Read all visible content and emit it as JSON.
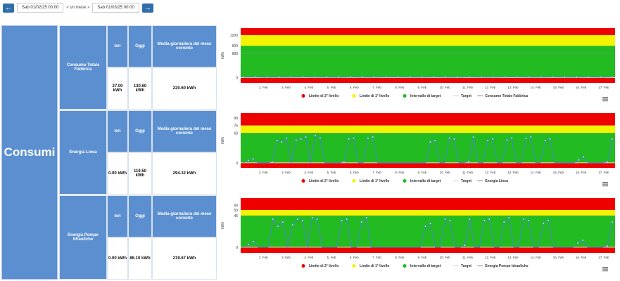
{
  "nav": {
    "prev_icon": "arrow-left-icon",
    "next_icon": "arrow-right-icon",
    "start_date": "Sab 01/02/25 00:00",
    "range_label": "« un mese »",
    "end_date": "Sab 01/03/25 00:00"
  },
  "section_title": "Consumi",
  "colors": {
    "header_blue": "#5b8fcf",
    "red": "#ee0000",
    "yellow": "#f4f400",
    "green": "#22bb22",
    "series": "#4a86c8"
  },
  "rows": [
    {
      "name": "Consumo Totale Fabbrica",
      "headers": {
        "yesterday": "Ieri",
        "today": "Oggi",
        "avg": "Media giornaliera del mese corrente"
      },
      "values": {
        "yesterday": "27.00 kWh",
        "today": "130.60 kWh",
        "avg": "220.60 kWh"
      }
    },
    {
      "name": "Energia Linea",
      "headers": {
        "yesterday": "Ieri",
        "today": "Oggi",
        "avg": "Media giornaliera del mese corrente"
      },
      "values": {
        "yesterday": "0.00 kWh",
        "today": "119.50 kWh",
        "avg": "294.32 kWh"
      }
    },
    {
      "name": "Energia Pompe Idrauliche",
      "headers": {
        "yesterday": "Ieri",
        "today": "Oggi",
        "avg": "Media giornaliera del mese corrente"
      },
      "values": {
        "yesterday": "0.00 kWh",
        "today": "86.10 kWh",
        "avg": "219.67 kWh"
      }
    }
  ],
  "chart_data": [
    {
      "type": "area",
      "ylabel": "kWh",
      "yticks": [
        0,
        680,
        900,
        1200
      ],
      "ylim": [
        -150,
        1400
      ],
      "xticks": [
        "2. Feb",
        "3. Feb",
        "4. Feb",
        "5. Feb",
        "6. Feb",
        "7. Feb",
        "8. Feb",
        "9. Feb",
        "10. Feb",
        "11. Feb",
        "12. Feb",
        "13. Feb",
        "14. Feb",
        "15. Feb",
        "16. Feb",
        "17. Feb"
      ],
      "bands": [
        {
          "name": "Limite di 2° livello",
          "from": 1200,
          "to": 1400,
          "color": "#ee0000"
        },
        {
          "name": "Limite di 1° livello",
          "from": 900,
          "to": 1200,
          "color": "#f4f400"
        },
        {
          "name": "Intervallo di target",
          "from": 0,
          "to": 900,
          "color": "#22bb22"
        },
        {
          "name": "Limite di 2° livello",
          "from": -150,
          "to": 0,
          "color": "#ee0000"
        }
      ],
      "target": 680,
      "series": [
        {
          "name": "Consumo Totale Fabbrica",
          "values": [
            10,
            12,
            9,
            11,
            10,
            12,
            11,
            10,
            9,
            12,
            11,
            10,
            13,
            12,
            11,
            10,
            12,
            11,
            10,
            12,
            11,
            10,
            13,
            12,
            11,
            10,
            12,
            11,
            10,
            12,
            11,
            12
          ]
        }
      ],
      "legend": [
        "Limite di 2° livello",
        "Limite di 1° livello",
        "Intervallo di target",
        "Target",
        "Consumo Totale Fabbrica"
      ],
      "legend_colors": [
        "#ee0000",
        "#f4f400",
        "#22bb22",
        "#cccccc",
        "#4a86c8"
      ]
    },
    {
      "type": "area",
      "ylabel": "kWh",
      "yticks": [
        0,
        60,
        75,
        90
      ],
      "ylim": [
        -10,
        100
      ],
      "xticks": [
        "2. Feb",
        "3. Feb",
        "4. Feb",
        "5. Feb",
        "6. Feb",
        "7. Feb",
        "8. Feb",
        "9. Feb",
        "10. Feb",
        "11. Feb",
        "12. Feb",
        "13. Feb",
        "14. Feb",
        "15. Feb",
        "16. Feb",
        "17. Feb"
      ],
      "bands": [
        {
          "name": "Limite di 2° livello",
          "from": 75,
          "to": 100,
          "color": "#ee0000"
        },
        {
          "name": "Limite di 1° livello",
          "from": 60,
          "to": 75,
          "color": "#f4f400"
        },
        {
          "name": "Intervallo di target",
          "from": 0,
          "to": 60,
          "color": "#22bb22"
        },
        {
          "name": "Limite di 2° livello",
          "from": -10,
          "to": 0,
          "color": "#ee0000"
        }
      ],
      "target": 60,
      "series": [
        {
          "name": "Energia Linea",
          "values": [
            0,
            5,
            8,
            0,
            0,
            0,
            2,
            45,
            42,
            50,
            0,
            46,
            48,
            52,
            0,
            55,
            50,
            0,
            0,
            0,
            0,
            2,
            48,
            50,
            0,
            0,
            49,
            52,
            0,
            0,
            0,
            0,
            0,
            0,
            0,
            0,
            0,
            0,
            0,
            42,
            45,
            0,
            0,
            50,
            48,
            0,
            0,
            3,
            52,
            0,
            0,
            45,
            48,
            0,
            0,
            46,
            50,
            0,
            0,
            49,
            52,
            0,
            0,
            45,
            48,
            0,
            0,
            0,
            0,
            0,
            6,
            12,
            0,
            0,
            0,
            0,
            2,
            48
          ]
        }
      ],
      "legend": [
        "Limite di 2° livello",
        "Limite di 1° livello",
        "Intervallo di target",
        "Target",
        "Energia Linea"
      ],
      "legend_colors": [
        "#ee0000",
        "#f4f400",
        "#22bb22",
        "#cccccc",
        "#4a86c8"
      ]
    },
    {
      "type": "area",
      "ylabel": "kWh",
      "yticks": [
        0,
        45,
        53,
        60
      ],
      "ylim": [
        -8,
        70
      ],
      "xticks": [
        "2. Feb",
        "3. Feb",
        "4. Feb",
        "5. Feb",
        "6. Feb",
        "7. Feb",
        "8. Feb",
        "9. Feb",
        "10. Feb",
        "11. Feb",
        "12. Feb",
        "13. Feb",
        "14. Feb",
        "15. Feb",
        "16. Feb",
        "17. Feb"
      ],
      "bands": [
        {
          "name": "Limite di 2° livello",
          "from": 53,
          "to": 70,
          "color": "#ee0000"
        },
        {
          "name": "Limite di 1° livello",
          "from": 45,
          "to": 53,
          "color": "#f4f400"
        },
        {
          "name": "Intervallo di target",
          "from": 0,
          "to": 45,
          "color": "#22bb22"
        },
        {
          "name": "Limite di 2° livello",
          "from": -8,
          "to": 0,
          "color": "#ee0000"
        }
      ],
      "target": 45,
      "series": [
        {
          "name": "Energia Pompe Idrauliche",
          "values": [
            0,
            4,
            8,
            0,
            0,
            0,
            40,
            30,
            36,
            0,
            32,
            40,
            38,
            0,
            42,
            40,
            0,
            0,
            0,
            0,
            38,
            40,
            0,
            0,
            36,
            42,
            0,
            0,
            0,
            0,
            0,
            0,
            0,
            0,
            0,
            0,
            0,
            30,
            34,
            0,
            0,
            40,
            38,
            0,
            0,
            3,
            40,
            0,
            0,
            38,
            40,
            0,
            0,
            36,
            42,
            0,
            0,
            40,
            38,
            0,
            0,
            34,
            38,
            0,
            0,
            0,
            0,
            0,
            6,
            10,
            0,
            0,
            0,
            0,
            2,
            36
          ]
        }
      ],
      "legend": [
        "Limite di 2° livello",
        "Limite di 1° livello",
        "Intervallo di target",
        "Target",
        "Energia Pompe Idrauliche"
      ],
      "legend_colors": [
        "#ee0000",
        "#f4f400",
        "#22bb22",
        "#cccccc",
        "#4a86c8"
      ]
    }
  ]
}
